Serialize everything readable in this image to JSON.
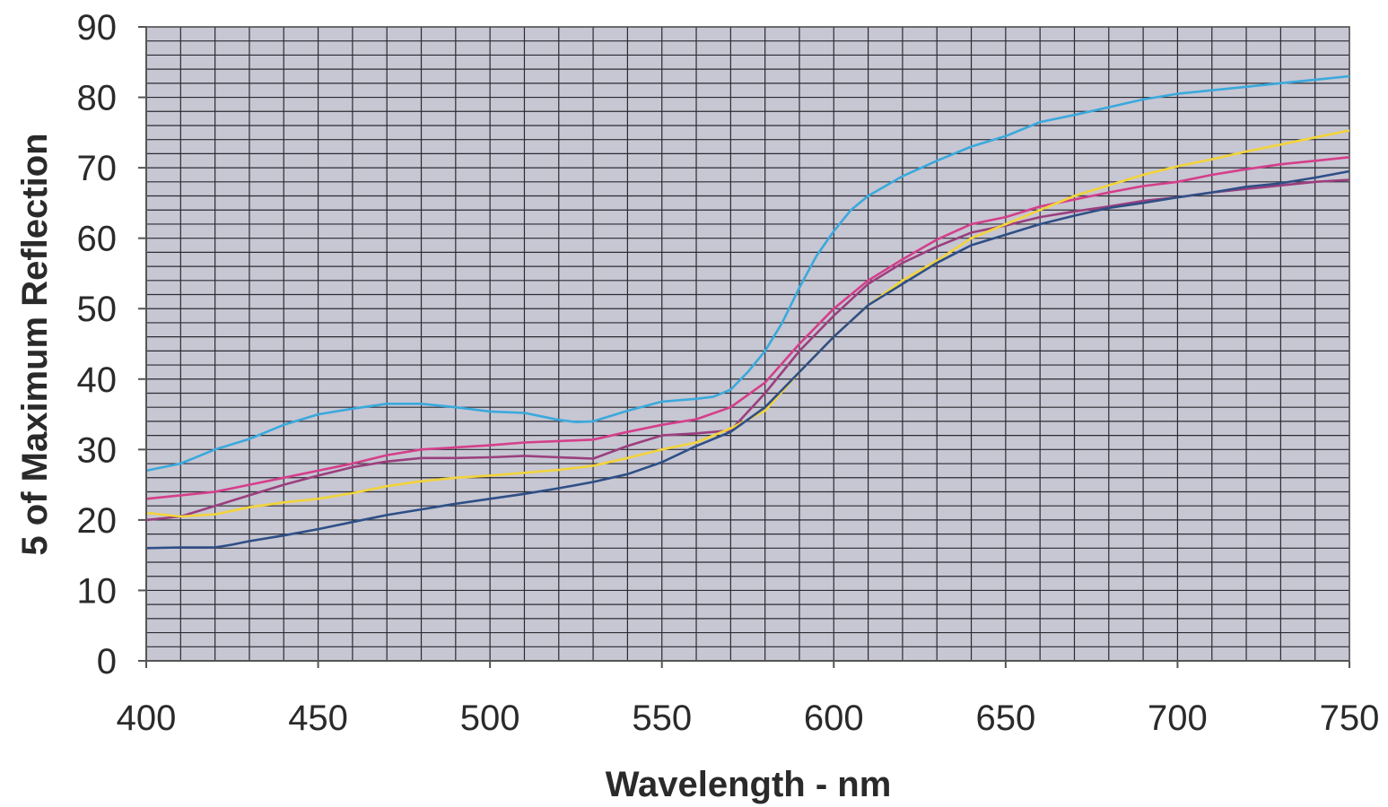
{
  "chart_data": {
    "type": "line",
    "xlabel": "Wavelength - nm",
    "ylabel": "5 of Maximum Reflection",
    "xlim": [
      400,
      750
    ],
    "ylim": [
      0,
      90
    ],
    "x_ticks": [
      "400",
      "450",
      "500",
      "550",
      "600",
      "650",
      "700",
      "750"
    ],
    "y_ticks": [
      "0",
      "10",
      "20",
      "30",
      "40",
      "50",
      "60",
      "70",
      "80",
      "90"
    ],
    "grid": true,
    "legend": "none",
    "plot_background": "#c7c6d3",
    "grid_color": "#2b2b33",
    "series": [
      {
        "color": "#3aa9dc",
        "points": [
          [
            400,
            27
          ],
          [
            410,
            28
          ],
          [
            420,
            30
          ],
          [
            430,
            31.5
          ],
          [
            440,
            33.5
          ],
          [
            450,
            35
          ],
          [
            460,
            35.8
          ],
          [
            470,
            36.5
          ],
          [
            480,
            36.5
          ],
          [
            490,
            36
          ],
          [
            500,
            35.4
          ],
          [
            510,
            35.2
          ],
          [
            520,
            34.2
          ],
          [
            525,
            33.9
          ],
          [
            530,
            34
          ],
          [
            540,
            35.5
          ],
          [
            550,
            36.8
          ],
          [
            560,
            37.2
          ],
          [
            565,
            37.5
          ],
          [
            570,
            38.5
          ],
          [
            575,
            41
          ],
          [
            580,
            44
          ],
          [
            585,
            48
          ],
          [
            590,
            53
          ],
          [
            595,
            57.5
          ],
          [
            600,
            61
          ],
          [
            605,
            64
          ],
          [
            610,
            66
          ],
          [
            620,
            68.8
          ],
          [
            630,
            71
          ],
          [
            640,
            73
          ],
          [
            650,
            74.5
          ],
          [
            660,
            76.5
          ],
          [
            670,
            77.5
          ],
          [
            680,
            78.6
          ],
          [
            690,
            79.7
          ],
          [
            700,
            80.5
          ],
          [
            710,
            81
          ],
          [
            720,
            81.5
          ],
          [
            730,
            82
          ],
          [
            740,
            82.5
          ],
          [
            750,
            83
          ]
        ]
      },
      {
        "color": "#d43f8a",
        "points": [
          [
            400,
            23
          ],
          [
            410,
            23.5
          ],
          [
            420,
            24
          ],
          [
            430,
            25
          ],
          [
            440,
            26
          ],
          [
            450,
            27
          ],
          [
            460,
            28
          ],
          [
            470,
            29.2
          ],
          [
            480,
            30
          ],
          [
            490,
            30.3
          ],
          [
            500,
            30.6
          ],
          [
            510,
            31
          ],
          [
            520,
            31.2
          ],
          [
            530,
            31.4
          ],
          [
            540,
            32.5
          ],
          [
            550,
            33.5
          ],
          [
            560,
            34.3
          ],
          [
            570,
            36
          ],
          [
            580,
            39.5
          ],
          [
            590,
            45
          ],
          [
            600,
            50
          ],
          [
            610,
            54
          ],
          [
            620,
            57
          ],
          [
            630,
            59.8
          ],
          [
            640,
            62
          ],
          [
            650,
            63
          ],
          [
            660,
            64.5
          ],
          [
            670,
            65.5
          ],
          [
            680,
            66.5
          ],
          [
            690,
            67.4
          ],
          [
            700,
            68
          ],
          [
            710,
            69
          ],
          [
            720,
            69.8
          ],
          [
            730,
            70.5
          ],
          [
            740,
            71
          ],
          [
            750,
            71.5
          ]
        ]
      },
      {
        "color": "#9a3f7e",
        "points": [
          [
            400,
            20
          ],
          [
            410,
            20.5
          ],
          [
            420,
            22
          ],
          [
            430,
            23.5
          ],
          [
            440,
            25
          ],
          [
            450,
            26.3
          ],
          [
            460,
            27.5
          ],
          [
            470,
            28.3
          ],
          [
            480,
            28.8
          ],
          [
            490,
            28.8
          ],
          [
            500,
            28.9
          ],
          [
            510,
            29.1
          ],
          [
            520,
            28.9
          ],
          [
            530,
            28.7
          ],
          [
            540,
            30.5
          ],
          [
            550,
            32
          ],
          [
            560,
            32.3
          ],
          [
            570,
            32.7
          ],
          [
            580,
            38
          ],
          [
            590,
            44
          ],
          [
            600,
            49
          ],
          [
            610,
            53.5
          ],
          [
            620,
            56.5
          ],
          [
            630,
            58.8
          ],
          [
            640,
            60.8
          ],
          [
            650,
            61.8
          ],
          [
            660,
            63
          ],
          [
            670,
            63.8
          ],
          [
            680,
            64.5
          ],
          [
            690,
            65.3
          ],
          [
            700,
            65.8
          ],
          [
            710,
            66.5
          ],
          [
            720,
            67
          ],
          [
            730,
            67.5
          ],
          [
            740,
            68
          ],
          [
            750,
            68.3
          ]
        ]
      },
      {
        "color": "#f2d43a",
        "points": [
          [
            400,
            21
          ],
          [
            410,
            20.5
          ],
          [
            420,
            20.8
          ],
          [
            430,
            21.8
          ],
          [
            440,
            22.5
          ],
          [
            450,
            23
          ],
          [
            460,
            23.8
          ],
          [
            470,
            24.8
          ],
          [
            480,
            25.5
          ],
          [
            490,
            26
          ],
          [
            500,
            26.3
          ],
          [
            510,
            26.7
          ],
          [
            520,
            27.1
          ],
          [
            530,
            27.7
          ],
          [
            540,
            28.8
          ],
          [
            550,
            30
          ],
          [
            560,
            31
          ],
          [
            570,
            33
          ],
          [
            580,
            35.5
          ],
          [
            590,
            41
          ],
          [
            600,
            46
          ],
          [
            610,
            50.5
          ],
          [
            620,
            54
          ],
          [
            630,
            56.8
          ],
          [
            640,
            60
          ],
          [
            650,
            62
          ],
          [
            660,
            64
          ],
          [
            670,
            66
          ],
          [
            680,
            67.5
          ],
          [
            690,
            69
          ],
          [
            700,
            70.2
          ],
          [
            710,
            71.2
          ],
          [
            720,
            72.3
          ],
          [
            730,
            73.3
          ],
          [
            740,
            74.3
          ],
          [
            750,
            75.3
          ]
        ]
      },
      {
        "color": "#2e4f86",
        "points": [
          [
            400,
            16
          ],
          [
            410,
            16.1
          ],
          [
            420,
            16.1
          ],
          [
            425,
            16.5
          ],
          [
            430,
            17
          ],
          [
            440,
            17.8
          ],
          [
            450,
            18.7
          ],
          [
            460,
            19.7
          ],
          [
            470,
            20.7
          ],
          [
            480,
            21.5
          ],
          [
            490,
            22.3
          ],
          [
            500,
            23
          ],
          [
            510,
            23.7
          ],
          [
            520,
            24.5
          ],
          [
            530,
            25.4
          ],
          [
            540,
            26.5
          ],
          [
            550,
            28.2
          ],
          [
            560,
            30.5
          ],
          [
            570,
            32.5
          ],
          [
            580,
            36
          ],
          [
            590,
            41
          ],
          [
            600,
            46
          ],
          [
            610,
            50.5
          ],
          [
            620,
            53.5
          ],
          [
            630,
            56.5
          ],
          [
            640,
            59
          ],
          [
            650,
            60.5
          ],
          [
            660,
            62
          ],
          [
            670,
            63.2
          ],
          [
            680,
            64.3
          ],
          [
            690,
            65
          ],
          [
            700,
            65.8
          ],
          [
            710,
            66.5
          ],
          [
            720,
            67.3
          ],
          [
            730,
            67.8
          ],
          [
            740,
            68.6
          ],
          [
            750,
            69.5
          ]
        ]
      }
    ]
  }
}
